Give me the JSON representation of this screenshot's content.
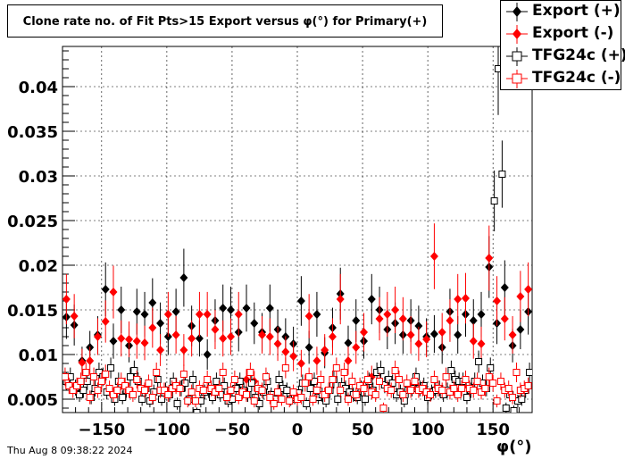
{
  "chart_data": {
    "type": "scatter",
    "title": "Clone rate no. of Fit Pts>15 Export versus φ(°) for Primary(+)",
    "xlabel": "φ(°)",
    "ylabel": "",
    "xlim": [
      -180,
      180
    ],
    "ylim": [
      0.0035,
      0.0445
    ],
    "xticks": [
      -150,
      -100,
      -50,
      0,
      50,
      100,
      150
    ],
    "xtick_labels": [
      "−150",
      "−100",
      "−50",
      "0",
      "50",
      "100",
      "150"
    ],
    "yticks": [
      0.005,
      0.01,
      0.015,
      0.02,
      0.025,
      0.03,
      0.035,
      0.04
    ],
    "ytick_labels": [
      "0.005",
      "0.01",
      "0.015",
      "0.02",
      "0.025",
      "0.03",
      "0.035",
      "0.04"
    ],
    "grid": true,
    "legend_position": "top-right",
    "series": [
      {
        "name": "Export (+)",
        "color": "#000000",
        "marker": "diamond-filled",
        "x": [
          -177,
          -171,
          -165,
          -159,
          -153,
          -147,
          -141,
          -135,
          -129,
          -123,
          -117,
          -111,
          -105,
          -99,
          -93,
          -87,
          -81,
          -75,
          -69,
          -63,
          -57,
          -51,
          -45,
          -39,
          -33,
          -27,
          -21,
          -15,
          -9,
          -3,
          3,
          9,
          15,
          21,
          27,
          33,
          39,
          45,
          51,
          57,
          63,
          69,
          75,
          81,
          87,
          93,
          99,
          105,
          111,
          117,
          123,
          129,
          135,
          141,
          147,
          153,
          159,
          165,
          171,
          177
        ],
        "y": [
          0.0142,
          0.0133,
          0.0093,
          0.0108,
          0.0122,
          0.0173,
          0.0115,
          0.015,
          0.011,
          0.0148,
          0.0145,
          0.0158,
          0.0135,
          0.012,
          0.0148,
          0.0186,
          0.0132,
          0.0118,
          0.01,
          0.0138,
          0.0152,
          0.015,
          0.0125,
          0.0152,
          0.0135,
          0.0125,
          0.0152,
          0.0128,
          0.012,
          0.0112,
          0.016,
          0.0108,
          0.0145,
          0.0102,
          0.013,
          0.0168,
          0.0113,
          0.0138,
          0.0115,
          0.0162,
          0.015,
          0.0128,
          0.0135,
          0.0122,
          0.0138,
          0.0132,
          0.012,
          0.0123,
          0.0108,
          0.0148,
          0.0122,
          0.0145,
          0.0138,
          0.0145,
          0.0198,
          0.0135,
          0.0175,
          0.011,
          0.0128,
          0.0148
        ]
      },
      {
        "name": "Export (-)",
        "color": "#ff0000",
        "marker": "diamond-filled",
        "x": [
          -177,
          -171,
          -165,
          -159,
          -153,
          -147,
          -141,
          -135,
          -129,
          -123,
          -117,
          -111,
          -105,
          -99,
          -93,
          -87,
          -81,
          -75,
          -69,
          -63,
          -57,
          -51,
          -45,
          -39,
          -33,
          -27,
          -21,
          -15,
          -9,
          -3,
          3,
          9,
          15,
          21,
          27,
          33,
          39,
          45,
          51,
          57,
          63,
          69,
          75,
          81,
          87,
          93,
          99,
          105,
          111,
          117,
          123,
          129,
          135,
          141,
          147,
          153,
          159,
          165,
          171,
          177
        ],
        "y": [
          0.0162,
          0.0143,
          0.0091,
          0.0093,
          0.012,
          0.0137,
          0.017,
          0.0118,
          0.0117,
          0.0115,
          0.0113,
          0.013,
          0.0105,
          0.0145,
          0.0122,
          0.0105,
          0.0118,
          0.0145,
          0.0145,
          0.0128,
          0.0118,
          0.012,
          0.0145,
          0.0072,
          0.007,
          0.0122,
          0.012,
          0.0112,
          0.0103,
          0.0098,
          0.009,
          0.0143,
          0.0093,
          0.0105,
          0.012,
          0.0162,
          0.0093,
          0.0108,
          0.0125,
          0.0075,
          0.014,
          0.0145,
          0.015,
          0.014,
          0.0122,
          0.0112,
          0.0117,
          0.021,
          0.0125,
          0.0138,
          0.0162,
          0.0163,
          0.0115,
          0.0112,
          0.0208,
          0.016,
          0.014,
          0.0122,
          0.0165,
          0.0173
        ]
      },
      {
        "name": "TFG24c (+)",
        "color": "#000000",
        "marker": "square-open",
        "x": [
          -177,
          -174,
          -170,
          -167,
          -164,
          -161,
          -158,
          -155,
          -152,
          -149,
          -146,
          -143,
          -140,
          -137,
          -134,
          -131,
          -128,
          -125,
          -122,
          -119,
          -116,
          -113,
          -110,
          -107,
          -104,
          -101,
          -98,
          -95,
          -92,
          -89,
          -86,
          -83,
          -80,
          -77,
          -74,
          -71,
          -68,
          -65,
          -62,
          -59,
          -56,
          -53,
          -50,
          -47,
          -44,
          -41,
          -38,
          -35,
          -32,
          -29,
          -26,
          -23,
          -20,
          -17,
          -14,
          -11,
          -8,
          -5,
          -2,
          1,
          4,
          7,
          10,
          13,
          16,
          19,
          22,
          25,
          28,
          31,
          34,
          37,
          40,
          43,
          46,
          49,
          52,
          55,
          58,
          61,
          64,
          67,
          70,
          73,
          76,
          79,
          82,
          85,
          88,
          91,
          94,
          97,
          100,
          103,
          106,
          109,
          112,
          115,
          118,
          121,
          124,
          127,
          130,
          133,
          136,
          139,
          142,
          145,
          148,
          151,
          154,
          157,
          160,
          163,
          166,
          169,
          172,
          175,
          178
        ],
        "y": [
          0.007,
          0.0075,
          0.0063,
          0.0055,
          0.006,
          0.007,
          0.0052,
          0.0062,
          0.008,
          0.0075,
          0.0058,
          0.0085,
          0.005,
          0.007,
          0.0052,
          0.006,
          0.0075,
          0.0082,
          0.007,
          0.005,
          0.0062,
          0.0048,
          0.0058,
          0.0072,
          0.005,
          0.006,
          0.0055,
          0.007,
          0.0045,
          0.0062,
          0.0068,
          0.005,
          0.0072,
          0.0035,
          0.0048,
          0.0058,
          0.006,
          0.0052,
          0.007,
          0.0055,
          0.0065,
          0.0048,
          0.005,
          0.0062,
          0.007,
          0.006,
          0.0055,
          0.0068,
          0.0052,
          0.0045,
          0.0058,
          0.007,
          0.0055,
          0.005,
          0.0072,
          0.0062,
          0.006,
          0.005,
          0.0052,
          0.0057,
          0.0068,
          0.0045,
          0.0062,
          0.007,
          0.0052,
          0.0055,
          0.0048,
          0.006,
          0.0072,
          0.005,
          0.0065,
          0.0062,
          0.0058,
          0.0055,
          0.0052,
          0.0062,
          0.005,
          0.007,
          0.006,
          0.008,
          0.0082,
          0.0066,
          0.0072,
          0.0068,
          0.0055,
          0.0058,
          0.0048,
          0.006,
          0.0062,
          0.0075,
          0.0062,
          0.0065,
          0.0052,
          0.0058,
          0.006,
          0.0062,
          0.0055,
          0.006,
          0.0082,
          0.0072,
          0.007,
          0.007,
          0.0052,
          0.006,
          0.007,
          0.0092,
          0.0068,
          0.0062,
          0.0085,
          0.0272,
          0.042,
          0.0302,
          0.004,
          0.0055,
          0.0037,
          0.0048,
          0.005,
          0.006,
          0.008
        ]
      },
      {
        "name": "TFG24c (-)",
        "color": "#ff0000",
        "marker": "square-open",
        "x": [
          -178,
          -175,
          -172,
          -169,
          -166,
          -162,
          -159,
          -156,
          -153,
          -150,
          -147,
          -144,
          -141,
          -138,
          -135,
          -132,
          -129,
          -126,
          -123,
          -120,
          -117,
          -114,
          -111,
          -108,
          -105,
          -102,
          -99,
          -96,
          -93,
          -90,
          -87,
          -84,
          -81,
          -78,
          -75,
          -72,
          -69,
          -66,
          -63,
          -60,
          -57,
          -54,
          -51,
          -48,
          -45,
          -42,
          -39,
          -36,
          -33,
          -30,
          -27,
          -24,
          -21,
          -18,
          -15,
          -12,
          -9,
          -6,
          -3,
          0,
          3,
          6,
          9,
          12,
          15,
          18,
          21,
          24,
          27,
          30,
          33,
          36,
          39,
          42,
          45,
          48,
          51,
          54,
          57,
          60,
          63,
          66,
          69,
          72,
          75,
          78,
          81,
          84,
          87,
          90,
          93,
          96,
          99,
          102,
          105,
          108,
          111,
          114,
          117,
          120,
          123,
          126,
          129,
          132,
          135,
          138,
          141,
          144,
          147,
          150,
          153,
          156,
          159,
          162,
          165,
          168,
          171,
          174,
          177
        ],
        "y": [
          0.0075,
          0.0065,
          0.006,
          0.0065,
          0.007,
          0.008,
          0.0052,
          0.0075,
          0.006,
          0.007,
          0.0078,
          0.0062,
          0.0055,
          0.006,
          0.007,
          0.0065,
          0.006,
          0.0055,
          0.0072,
          0.0062,
          0.006,
          0.0068,
          0.0052,
          0.008,
          0.006,
          0.006,
          0.0055,
          0.0062,
          0.0065,
          0.0062,
          0.0078,
          0.0048,
          0.0058,
          0.0048,
          0.0062,
          0.006,
          0.0072,
          0.0062,
          0.0058,
          0.0062,
          0.008,
          0.0052,
          0.006,
          0.0072,
          0.0052,
          0.0058,
          0.0055,
          0.008,
          0.0048,
          0.0062,
          0.006,
          0.0075,
          0.0052,
          0.0045,
          0.0058,
          0.005,
          0.0085,
          0.0048,
          0.0058,
          0.005,
          0.0052,
          0.0068,
          0.0075,
          0.005,
          0.006,
          0.0072,
          0.0055,
          0.006,
          0.0072,
          0.0085,
          0.006,
          0.008,
          0.005,
          0.007,
          0.0055,
          0.0065,
          0.0062,
          0.0072,
          0.0058,
          0.0055,
          0.007,
          0.004,
          0.0062,
          0.006,
          0.0082,
          0.0072,
          0.0055,
          0.0068,
          0.006,
          0.007,
          0.006,
          0.0062,
          0.0058,
          0.0055,
          0.0072,
          0.0062,
          0.006,
          0.0075,
          0.0058,
          0.0062,
          0.0055,
          0.0062,
          0.0072,
          0.0062,
          0.006,
          0.007,
          0.0058,
          0.0062,
          0.0075,
          0.0068,
          0.0048,
          0.007,
          0.006,
          0.0062,
          0.0052,
          0.008,
          0.006,
          0.0062,
          0.0065
        ]
      }
    ]
  },
  "footer": {
    "timestamp": "Thu Aug  8 09:38:22 2024"
  }
}
